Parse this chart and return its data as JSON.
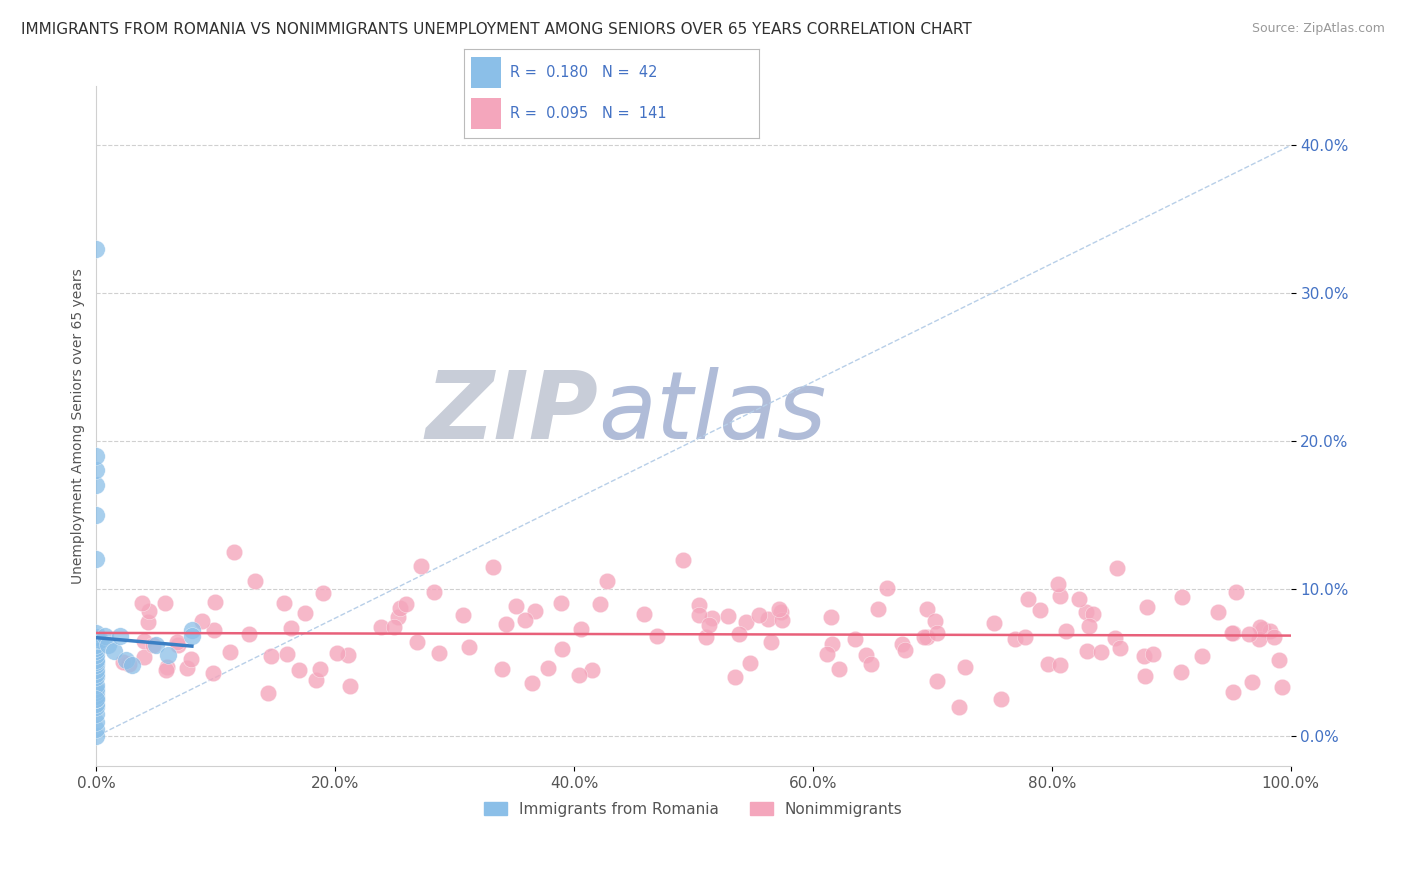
{
  "title": "IMMIGRANTS FROM ROMANIA VS NONIMMIGRANTS UNEMPLOYMENT AMONG SENIORS OVER 65 YEARS CORRELATION CHART",
  "source": "Source: ZipAtlas.com",
  "ylabel": "Unemployment Among Seniors over 65 years",
  "xlim": [
    0.0,
    1.0
  ],
  "ylim": [
    -0.02,
    0.44
  ],
  "xticks": [
    0.0,
    0.2,
    0.4,
    0.6,
    0.8,
    1.0
  ],
  "xticklabels": [
    "0.0%",
    "20.0%",
    "40.0%",
    "60.0%",
    "80.0%",
    "100.0%"
  ],
  "yticks": [
    0.0,
    0.1,
    0.2,
    0.3,
    0.4
  ],
  "yticklabels": [
    "0.0%",
    "10.0%",
    "20.0%",
    "30.0%",
    "40.0%"
  ],
  "legend_text1": "R =  0.180   N =  42",
  "legend_text2": "R =  0.095   N =  141",
  "blue_scatter_color": "#8bbfe8",
  "pink_scatter_color": "#f4a6bc",
  "blue_line_color": "#3b7fc4",
  "pink_line_color": "#e8607a",
  "dashed_line_color": "#b8cfe8",
  "watermark_zip_color": "#c8cdd8",
  "watermark_atlas_color": "#b0bcd8",
  "background_color": "#ffffff",
  "grid_color": "#d0d0d0",
  "title_color": "#303030",
  "ytick_color": "#4472c4",
  "xtick_color": "#555555",
  "legend_color": "#4472c4",
  "blue_scatter_x": [
    0.0,
    0.0,
    0.0,
    0.0,
    0.0,
    0.0,
    0.0,
    0.0,
    0.0,
    0.0,
    0.0,
    0.0,
    0.0,
    0.0,
    0.0,
    0.0,
    0.0,
    0.0,
    0.0,
    0.0,
    0.0,
    0.0,
    0.0,
    0.0,
    0.0,
    0.0,
    0.0,
    0.0,
    0.0,
    0.0,
    0.0,
    0.003,
    0.007,
    0.01,
    0.015,
    0.02,
    0.025,
    0.03,
    0.05,
    0.06,
    0.08,
    0.08
  ],
  "blue_scatter_y": [
    0.33,
    0.0,
    0.005,
    0.01,
    0.015,
    0.02,
    0.022,
    0.025,
    0.027,
    0.03,
    0.032,
    0.035,
    0.04,
    0.042,
    0.045,
    0.048,
    0.05,
    0.052,
    0.055,
    0.058,
    0.06,
    0.062,
    0.065,
    0.067,
    0.07,
    0.12,
    0.15,
    0.17,
    0.18,
    0.19,
    0.025,
    0.065,
    0.068,
    0.062,
    0.058,
    0.068,
    0.052,
    0.048,
    0.062,
    0.055,
    0.072,
    0.068
  ],
  "pink_scatter_seed": 42,
  "figsize": [
    14.06,
    8.92
  ],
  "dpi": 100
}
